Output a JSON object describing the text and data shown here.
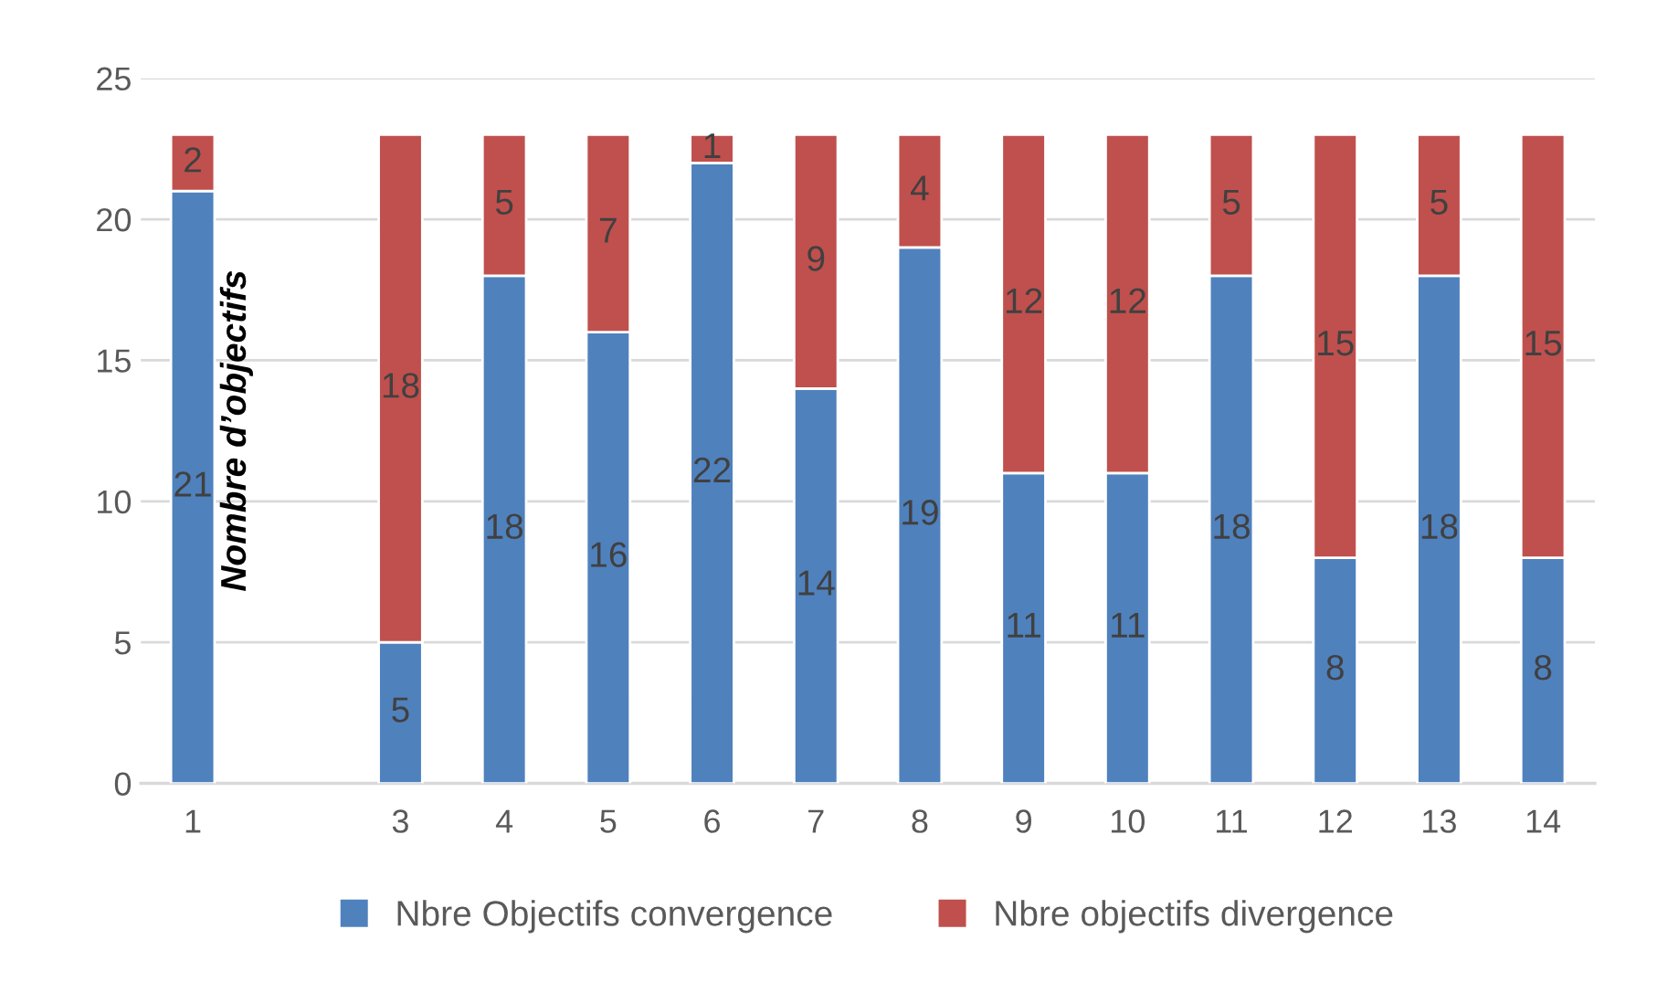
{
  "chart_data": {
    "type": "bar",
    "stacked": true,
    "ylabel": "Nombre d’objectifs",
    "categories": [
      "1",
      null,
      "3",
      "4",
      "5",
      "6",
      "7",
      "8",
      "9",
      "10",
      "11",
      "12",
      "13",
      "14"
    ],
    "series": [
      {
        "name": "Nbre Objectifs convergence",
        "color": "#4f81bd",
        "values": [
          21,
          null,
          5,
          18,
          16,
          22,
          14,
          19,
          11,
          11,
          18,
          8,
          18,
          8
        ]
      },
      {
        "name": "Nbre objectifs divergence",
        "color": "#c0504d",
        "values": [
          2,
          null,
          18,
          5,
          7,
          1,
          9,
          4,
          12,
          12,
          5,
          15,
          5,
          15
        ]
      }
    ],
    "ylim": [
      0,
      25
    ],
    "yticks": [
      0,
      5,
      10,
      15,
      20,
      25
    ],
    "grid": "y",
    "legend": "bottom",
    "data_labels": true
  }
}
